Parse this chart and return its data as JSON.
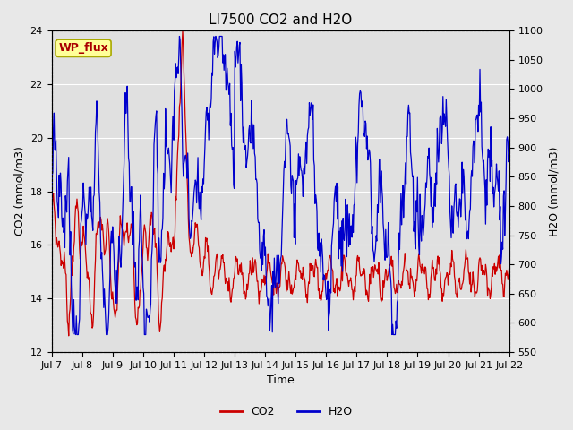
{
  "title": "LI7500 CO2 and H2O",
  "xlabel": "Time",
  "ylabel_left": "CO2 (mmol/m3)",
  "ylabel_right": "H2O (mmol/m3)",
  "annotation": "WP_flux",
  "ylim_left": [
    12,
    24
  ],
  "ylim_right": [
    550,
    1100
  ],
  "yticks_left": [
    12,
    14,
    16,
    18,
    20,
    22,
    24
  ],
  "yticks_right": [
    550,
    600,
    650,
    700,
    750,
    800,
    850,
    900,
    950,
    1000,
    1050,
    1100
  ],
  "xtick_labels": [
    "Jul 7",
    "Jul 8",
    "Jul 9",
    "Jul 10",
    "Jul 11",
    "Jul 12",
    "Jul 13",
    "Jul 14",
    "Jul 15",
    "Jul 16",
    "Jul 17",
    "Jul 18",
    "Jul 19",
    "Jul 20",
    "Jul 21",
    "Jul 22"
  ],
  "co2_color": "#cc0000",
  "h2o_color": "#0000cc",
  "background_color": "#e8e8e8",
  "plot_bg_color": "#e0e0e0",
  "grid_color": "#ffffff",
  "title_fontsize": 11,
  "label_fontsize": 9,
  "tick_fontsize": 8,
  "legend_fontsize": 9,
  "line_width": 0.9,
  "annotation_bg": "#ffff99",
  "annotation_border": "#aaaa00",
  "annotation_text_color": "#aa0000",
  "annotation_fontsize": 9
}
